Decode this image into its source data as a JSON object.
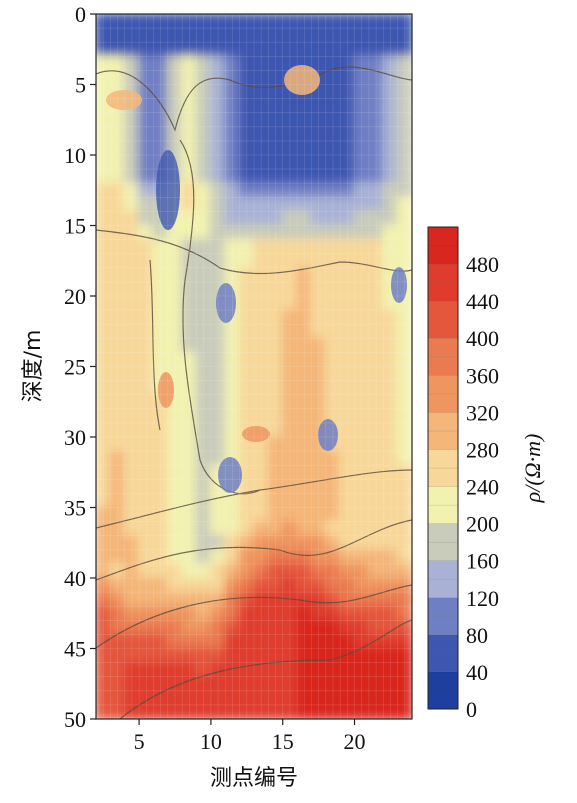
{
  "chart_data": {
    "type": "heatmap",
    "title": "",
    "xlabel": "测点编号",
    "ylabel": "深度/m",
    "xlim": [
      2,
      24
    ],
    "ylim": [
      0,
      50
    ],
    "y_inverted": true,
    "x_ticks": [
      5,
      10,
      15,
      20
    ],
    "y_ticks": [
      0,
      5,
      10,
      15,
      20,
      25,
      30,
      35,
      40,
      45,
      50
    ],
    "colorbar": {
      "label": "ρ/(Ω·m)",
      "range": [
        0,
        520
      ],
      "ticks": [
        0,
        40,
        80,
        120,
        160,
        200,
        240,
        280,
        320,
        360,
        400,
        440,
        480
      ],
      "colors": [
        "#1f3fa0",
        "#3e56b0",
        "#6f7fc4",
        "#a9b2d5",
        "#c9ccba",
        "#f2f2b0",
        "#f7d89a",
        "#f4b679",
        "#ef955f",
        "#ea7a4f",
        "#e4573c",
        "#df3c2d",
        "#d9261f"
      ]
    },
    "profile": [
      {
        "x": 2,
        "depth_0_3": 50,
        "near_surface": 210,
        "mid": 260,
        "deep_start": 37,
        "deep": 430
      },
      {
        "x": 4,
        "depth_0_3": 50,
        "near_surface": 230,
        "mid": 270,
        "deep_start": 40,
        "deep": 440
      },
      {
        "x": 6,
        "depth_0_3": 50,
        "near_surface": 80,
        "mid": 240,
        "deep_start": 39,
        "deep": 450
      },
      {
        "x": 8,
        "depth_0_3": 50,
        "near_surface": 230,
        "mid": 200,
        "deep_start": 38,
        "deep": 460
      },
      {
        "x": 10,
        "depth_0_3": 50,
        "near_surface": 180,
        "mid": 170,
        "deep_start": 38,
        "deep": 470
      },
      {
        "x": 12,
        "depth_0_3": 50,
        "near_surface": 60,
        "mid": 230,
        "deep_start": 36,
        "deep": 470
      },
      {
        "x": 14,
        "depth_0_3": 50,
        "near_surface": 60,
        "mid": 260,
        "deep_start": 35,
        "deep": 470
      },
      {
        "x": 16,
        "depth_0_3": 50,
        "near_surface": 70,
        "mid": 280,
        "deep_start": 35,
        "deep": 480
      },
      {
        "x": 18,
        "depth_0_3": 50,
        "near_surface": 60,
        "mid": 270,
        "deep_start": 36,
        "deep": 480
      },
      {
        "x": 20,
        "depth_0_3": 50,
        "near_surface": 70,
        "mid": 250,
        "deep_start": 37,
        "deep": 490
      },
      {
        "x": 22,
        "depth_0_3": 50,
        "near_surface": 110,
        "mid": 240,
        "deep_start": 37,
        "deep": 500
      },
      {
        "x": 24,
        "depth_0_3": 50,
        "near_surface": 180,
        "mid": 220,
        "deep_start": 37,
        "deep": 510
      }
    ]
  }
}
